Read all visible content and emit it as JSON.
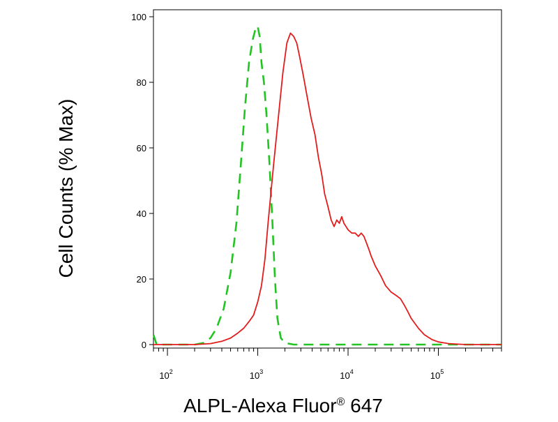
{
  "chart_data": {
    "type": "line",
    "xlabel": "ALPL-Alexa Fluor® 647",
    "xlabel_parts": {
      "main": "ALPL-Alexa Fluor",
      "mark": "®",
      "tail": " 647"
    },
    "ylabel": "Cell Counts (% Max)",
    "x_scale": "log",
    "xlim": [
      70,
      500000
    ],
    "ylim": [
      0,
      100
    ],
    "y_ticks": [
      0,
      20,
      40,
      60,
      80,
      100
    ],
    "x_ticks": [
      {
        "value": 100,
        "base": "10",
        "exp": "2"
      },
      {
        "value": 1000,
        "base": "10",
        "exp": "3"
      },
      {
        "value": 10000,
        "base": "10",
        "exp": "4"
      },
      {
        "value": 100000,
        "base": "10",
        "exp": "5"
      }
    ],
    "grid": false,
    "legend": "none",
    "series": [
      {
        "color": "#22c422",
        "style": "dashed",
        "x": [
          70,
          76,
          85,
          100,
          120,
          150,
          200,
          250,
          300,
          350,
          420,
          500,
          580,
          650,
          720,
          800,
          880,
          960,
          1000,
          1050,
          1100,
          1170,
          1250,
          1350,
          1450,
          1550,
          1650,
          1800,
          2000,
          2500,
          5000,
          10000,
          50000,
          200000,
          500000
        ],
        "y": [
          3,
          0,
          0,
          0,
          0,
          0,
          0,
          0.5,
          2,
          5,
          11,
          22,
          37,
          55,
          72,
          86,
          93,
          97,
          97,
          94,
          86,
          80,
          70,
          55,
          38,
          20,
          8,
          2,
          0.5,
          0,
          0,
          0,
          0,
          0,
          0
        ]
      },
      {
        "color": "#e31b1b",
        "style": "solid",
        "x": [
          70,
          200,
          300,
          400,
          500,
          600,
          700,
          800,
          900,
          1000,
          1100,
          1200,
          1300,
          1500,
          1700,
          1900,
          2100,
          2300,
          2500,
          2700,
          2900,
          3200,
          3500,
          3900,
          4300,
          4700,
          5100,
          5500,
          6000,
          6500,
          7000,
          7500,
          8000,
          8500,
          9000,
          9500,
          10000,
          11000,
          12000,
          13000,
          14000,
          15000,
          16000,
          17000,
          18000,
          20000,
          23000,
          26000,
          30000,
          34000,
          38000,
          42000,
          46000,
          50000,
          60000,
          70000,
          85000,
          100000,
          130000,
          200000,
          300000,
          500000
        ],
        "y": [
          0,
          0,
          0.3,
          1,
          2,
          3.5,
          5,
          7,
          9,
          13,
          18,
          26,
          37,
          55,
          70,
          83,
          92,
          95,
          94,
          92,
          88,
          82,
          76,
          69,
          64,
          57,
          52,
          46,
          42,
          38,
          36,
          38,
          37,
          39,
          37,
          36,
          35,
          34,
          34,
          33,
          34,
          33,
          31,
          29,
          27,
          24,
          21,
          18,
          16,
          15,
          14,
          12,
          10,
          8,
          5,
          3,
          1.5,
          0.8,
          0.3,
          0,
          0,
          0
        ]
      }
    ]
  }
}
